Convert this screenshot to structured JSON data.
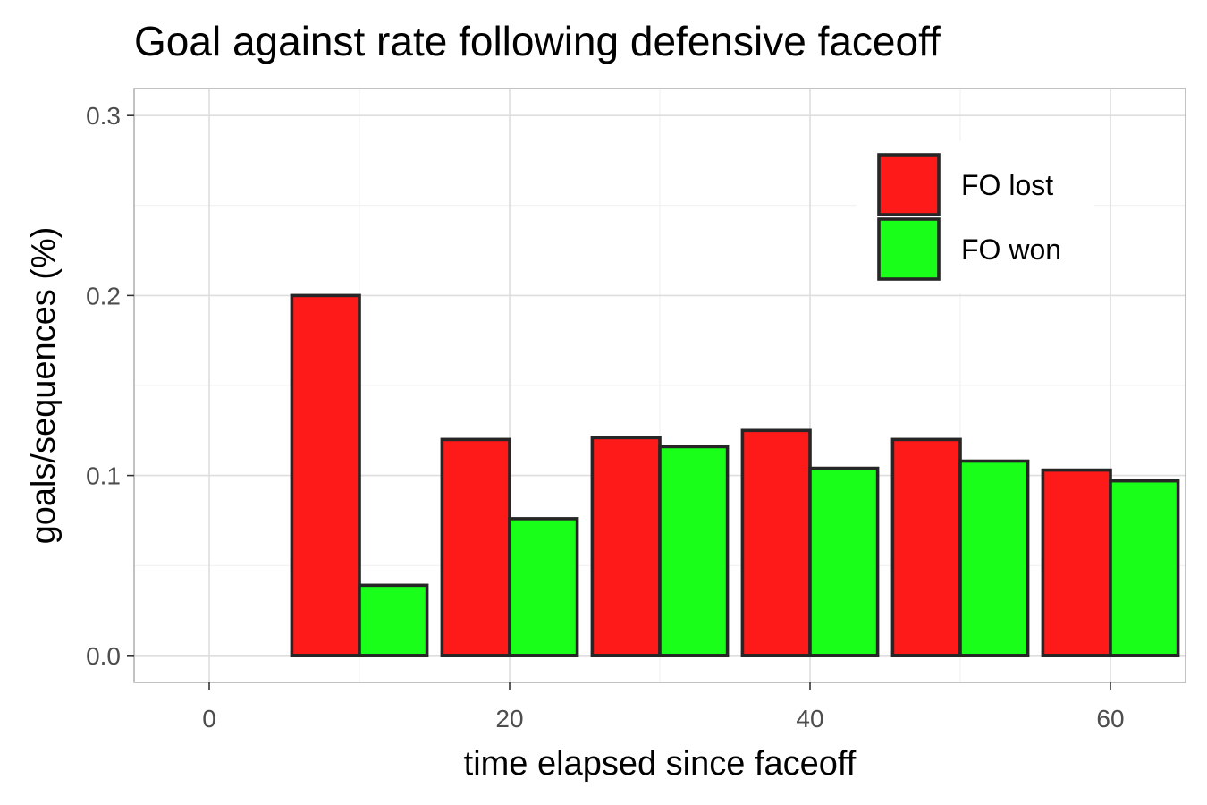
{
  "chart_data": {
    "type": "bar",
    "title": "Goal against rate following defensive faceoff",
    "xlabel": "time elapsed since faceoff",
    "ylabel": "goals/sequences (%)",
    "x": [
      0,
      10,
      20,
      30,
      40,
      50,
      60
    ],
    "series": [
      {
        "name": "FO lost",
        "color": "#ff1a1a",
        "values": [
          0.0,
          0.2,
          0.12,
          0.121,
          0.125,
          0.12,
          0.103
        ]
      },
      {
        "name": "FO won",
        "color": "#1aff1a",
        "values": [
          0.0,
          0.039,
          0.076,
          0.116,
          0.104,
          0.108,
          0.097
        ]
      }
    ],
    "xlim": [
      -5,
      65
    ],
    "ylim": [
      -0.015,
      0.315
    ],
    "xticks": [
      0,
      20,
      40,
      60
    ],
    "xtick_labels": [
      "0",
      "20",
      "40",
      "60"
    ],
    "yticks": [
      0.0,
      0.1,
      0.2,
      0.3
    ],
    "ytick_labels": [
      "0.0",
      "0.1",
      "0.2",
      "0.3"
    ],
    "grid": true,
    "legend_position": "top-right inside"
  }
}
